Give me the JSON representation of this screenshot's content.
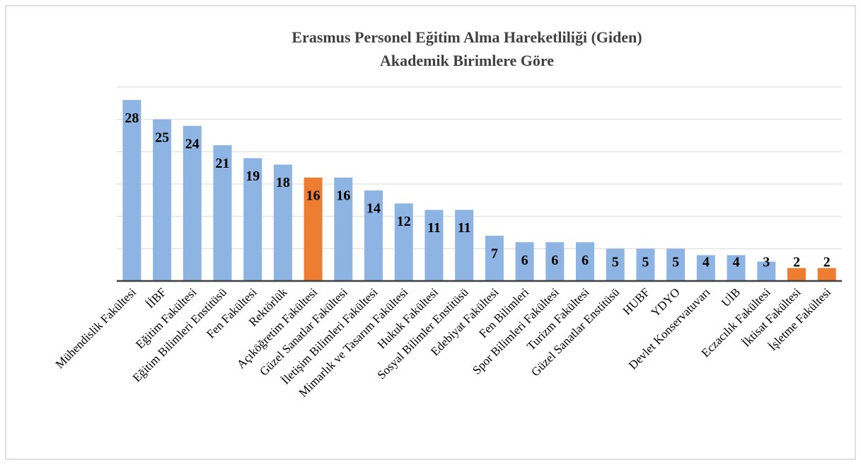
{
  "chart_data": {
    "type": "bar",
    "title": [
      "Erasmus Personel Eğitim Alma Hareketliliği (Giden)",
      "Akademik Birimlere Göre"
    ],
    "categories": [
      "Mühendislik Fakültesi",
      "İİBF",
      "Eğitim Fakültesi",
      "Eğitim Bilimleri Enstitüsü",
      "Fen Fakültesi",
      "Rektörlük",
      "Açıköğretim Fakültesi",
      "Güzel Sanatlar Fakültesi",
      "İletişim Bilimleri Fakültesi",
      "Mimarlık ve Tasarım Fakültesi",
      "Hukuk Fakültesi",
      "Sosyal Bilimler Enstitüsü",
      "Edebiyat Fakültesi",
      "Fen Bilimleri",
      "Spor Bilimleri Fakültesi",
      "Turizm Fakültesi",
      "Güzel Sanatlar Enstitüsü",
      "HUBF",
      "YDYO",
      "Devlet Konservatuvarı",
      "UİB",
      "Eczacılık Fakültesi",
      "İktisat Fakültesi",
      "İşletme Fakültesi"
    ],
    "values": [
      28,
      25,
      24,
      21,
      19,
      18,
      16,
      16,
      14,
      12,
      11,
      11,
      7,
      6,
      6,
      6,
      5,
      5,
      5,
      4,
      4,
      3,
      2,
      2
    ],
    "colors": [
      "#8db4e2",
      "#8db4e2",
      "#8db4e2",
      "#8db4e2",
      "#8db4e2",
      "#8db4e2",
      "#ed7d31",
      "#8db4e2",
      "#8db4e2",
      "#8db4e2",
      "#8db4e2",
      "#8db4e2",
      "#8db4e2",
      "#8db4e2",
      "#8db4e2",
      "#8db4e2",
      "#8db4e2",
      "#8db4e2",
      "#8db4e2",
      "#8db4e2",
      "#8db4e2",
      "#8db4e2",
      "#ed7d31",
      "#ed7d31"
    ],
    "ylim": [
      0,
      30
    ],
    "yticks": [
      0,
      5,
      10,
      15,
      20,
      25,
      30
    ],
    "grid": true
  }
}
